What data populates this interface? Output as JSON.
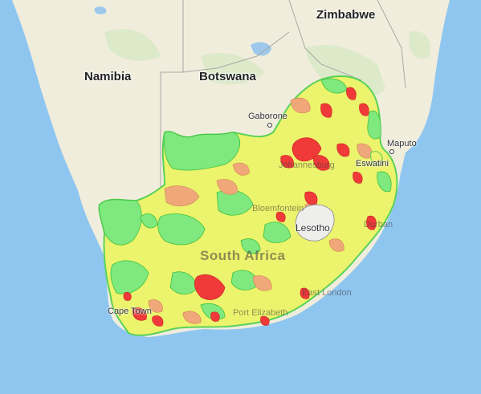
{
  "map": {
    "countries": {
      "zimbabwe": "Zimbabwe",
      "namibia": "Namibia",
      "botswana": "Botswana",
      "lesotho": "Lesotho",
      "south_africa": "South Africa",
      "eswatini": "Eswatini"
    },
    "cities": {
      "gaborone": "Gaborone",
      "maputo": "Maputo",
      "johannesburg": "Johannesburg",
      "bloemfontein": "Bloemfontein",
      "durban": "Durban",
      "east_london": "East London",
      "port_elizabeth": "Port Elizabeth",
      "cape_town": "Cape Town"
    },
    "colors": {
      "ocean": "#8fc6f0",
      "land": "#f1eddc",
      "low": "#7fe87f",
      "medium": "#f2f26a",
      "elevated": "#f0a87a",
      "high": "#f03a3a"
    }
  }
}
